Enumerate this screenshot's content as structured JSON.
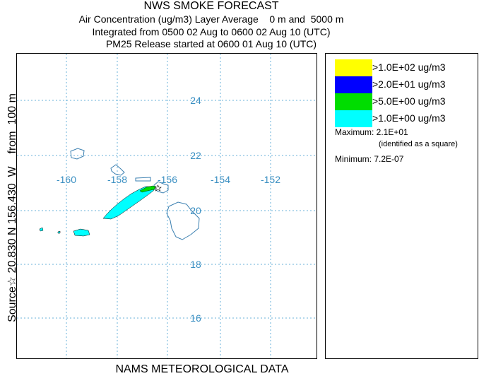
{
  "header": {
    "title": "NWS SMOKE FORECAST",
    "line1": "Air Concentration (ug/m3) Layer Average    0 m and  5000 m",
    "line2": "Integrated from 0500 02 Aug to 0600 02 Aug 10 (UTC)",
    "line3": "PM25 Release started at 0600 01 Aug 10 (UTC)"
  },
  "side_label": "Source☆ 20.830 N 156.430  W    from  100 m",
  "footer": "NAMS METEOROLOGICAL DATA",
  "map": {
    "longitude_labels": [
      "-160",
      "-158",
      "-156",
      "-154",
      "-152"
    ],
    "latitude_labels": [
      "24",
      "22",
      "20",
      "18",
      "16"
    ],
    "grid_color": "#6ab0d8",
    "label_color": "#3a8fc2"
  },
  "legend": {
    "items": [
      {
        "label": ">1.0E+02 ug/m3",
        "color": "#ffff00"
      },
      {
        "label": ">2.0E+01 ug/m3",
        "color": "#0000ff"
      },
      {
        "label": ">5.0E+00 ug/m3",
        "color": "#00dd00"
      },
      {
        "label": ">1.0E+00 ug/m3",
        "color": "#00ffff"
      }
    ],
    "maximum": "Maximum: 2.1E+01",
    "identified": "(identified as a square)",
    "minimum": "Minimum: 7.2E-07"
  }
}
